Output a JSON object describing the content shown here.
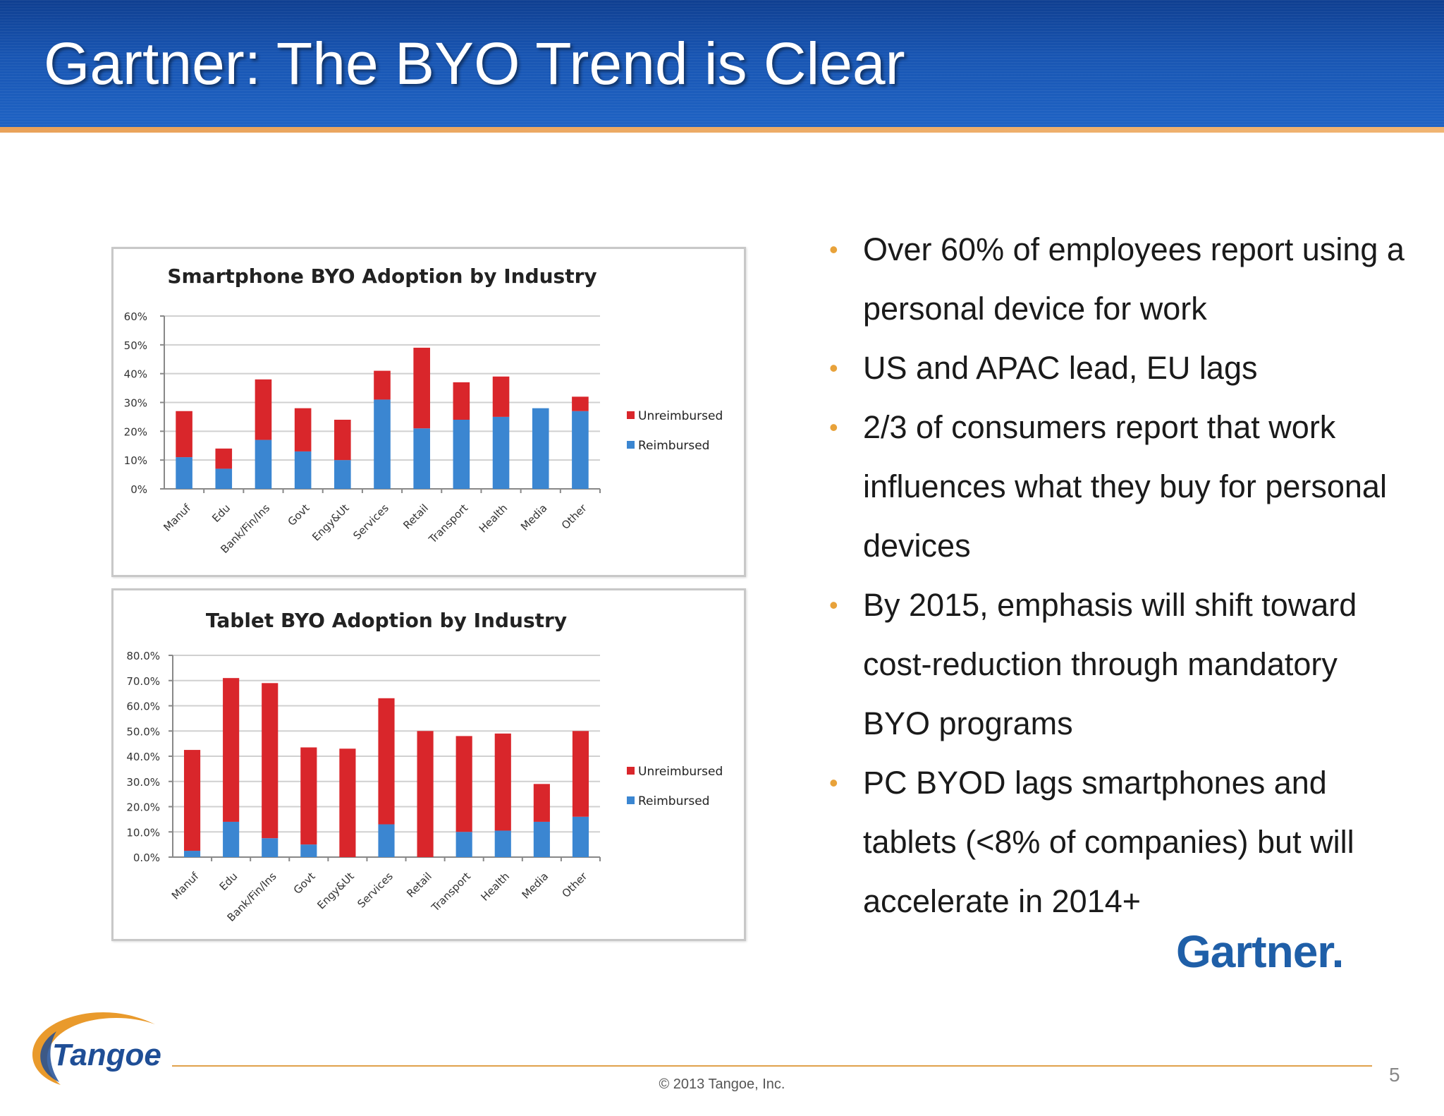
{
  "slide": {
    "title": "Gartner: The BYO Trend is Clear",
    "bullets": [
      "Over 60% of employees report using a personal device for work",
      "US and APAC lead, EU lags",
      "2/3 of consumers report that work influences what they buy for personal devices",
      "By 2015, emphasis will shift toward cost-reduction through mandatory BYO programs",
      "PC BYOD lags smartphones and tablets (<8% of companies) but will accelerate in 2014+"
    ],
    "bullet_symbol": "•",
    "gartner_logo_text": "Gartner.",
    "tangoe_logo_text": "Tangoe",
    "copyright": "© 2013 Tangoe, Inc.",
    "page_number": "5"
  },
  "colors": {
    "title_bar": "#1a56b0",
    "accent_orange": "#e8a23a",
    "unreimbursed": "#d9262b",
    "reimbursed": "#3b86d1"
  },
  "chart_data": [
    {
      "type": "bar",
      "stacked": true,
      "title": "Smartphone BYO Adoption by Industry",
      "categories": [
        "Manuf",
        "Edu",
        "Bank/Fin/Ins",
        "Govt",
        "Engy&Ut",
        "Services",
        "Retail",
        "Transport",
        "Health",
        "Media",
        "Other"
      ],
      "series": [
        {
          "name": "Reimbursed",
          "values": [
            11,
            7,
            17,
            13,
            10,
            31,
            21,
            24,
            25,
            28,
            27
          ]
        },
        {
          "name": "Unreimbursed",
          "values": [
            16,
            7,
            21,
            15,
            14,
            10,
            28,
            13,
            14,
            0,
            5
          ]
        }
      ],
      "yticks": [
        "0%",
        "10%",
        "20%",
        "30%",
        "40%",
        "50%",
        "60%"
      ],
      "ylim": [
        0,
        60
      ],
      "legend": [
        "Unreimbursed",
        "Reimbursed"
      ],
      "legend_position": "right",
      "grid": true
    },
    {
      "type": "bar",
      "stacked": true,
      "title": "Tablet BYO Adoption by Industry",
      "categories": [
        "Manuf",
        "Edu",
        "Bank/Fin/Ins",
        "Govt",
        "Engy&Ut",
        "Services",
        "Retail",
        "Transport",
        "Health",
        "Media",
        "Other"
      ],
      "series": [
        {
          "name": "Reimbursed",
          "values": [
            2.5,
            14,
            7.5,
            5,
            0,
            13,
            0,
            10,
            10.5,
            14,
            16
          ]
        },
        {
          "name": "Unreimbursed",
          "values": [
            40,
            57,
            61.5,
            38.5,
            43,
            50,
            50,
            38,
            38.5,
            15,
            34
          ]
        }
      ],
      "yticks": [
        "0.0%",
        "10.0%",
        "20.0%",
        "30.0%",
        "40.0%",
        "50.0%",
        "60.0%",
        "70.0%",
        "80.0%"
      ],
      "ylim": [
        0,
        80
      ],
      "legend": [
        "Unreimbursed",
        "Reimbursed"
      ],
      "legend_position": "right",
      "grid": true
    }
  ]
}
